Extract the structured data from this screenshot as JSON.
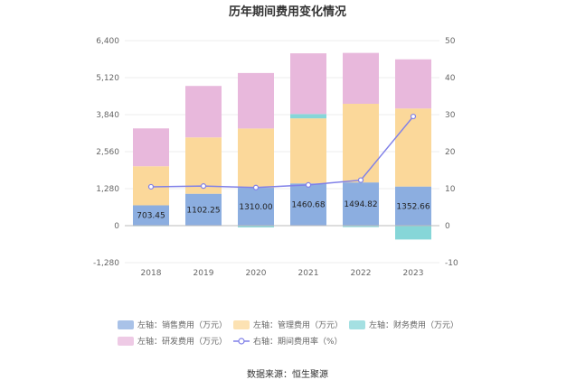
{
  "chart_data": {
    "type": "bar",
    "title": "历年期间费用变化情况",
    "source": "数据来源：恒生聚源",
    "categories": [
      "2018",
      "2019",
      "2020",
      "2021",
      "2022",
      "2023"
    ],
    "left_axis": {
      "ylim": [
        -1280,
        6400
      ],
      "ticks": [
        "6,400",
        "5,120",
        "3,840",
        "2,560",
        "1,280",
        "0",
        "-1,280"
      ],
      "tick_values": [
        6400,
        5120,
        3840,
        2560,
        1280,
        0,
        -1280
      ]
    },
    "right_axis": {
      "ylim": [
        -10,
        50
      ],
      "ticks": [
        "50",
        "40",
        "30",
        "20",
        "10",
        "0",
        "-10"
      ],
      "tick_values": [
        50,
        40,
        30,
        20,
        10,
        0,
        -10
      ]
    },
    "series": [
      {
        "name": "左轴：销售费用（万元）",
        "axis": "left",
        "kind": "bar",
        "color": "#8caee0",
        "values": [
          703.45,
          1102.25,
          1310.0,
          1460.68,
          1494.82,
          1352.66
        ],
        "labels": [
          "703.45",
          "1102.25",
          "1310.00",
          "1460.68",
          "1494.82",
          "1352.66"
        ]
      },
      {
        "name": "左轴：管理费用（万元）",
        "axis": "left",
        "kind": "bar",
        "color": "#fbd89a",
        "values": [
          1350,
          1950,
          2050,
          2250,
          2720,
          2700
        ]
      },
      {
        "name": "左轴：财务费用（万元）",
        "axis": "left",
        "kind": "bar",
        "color": "#86d6d8",
        "values": [
          -20,
          -15,
          -60,
          150,
          -50,
          -480
        ]
      },
      {
        "name": "左轴：研发费用（万元）",
        "axis": "left",
        "kind": "bar",
        "color": "#e8b8dc",
        "values": [
          1310,
          1780,
          1920,
          2100,
          1760,
          1700
        ]
      },
      {
        "name": "右轴：期间费用率（%）",
        "axis": "right",
        "kind": "line",
        "color": "#8080e8",
        "values": [
          10.5,
          10.7,
          10.3,
          11.0,
          12.3,
          29.5
        ]
      }
    ],
    "legend_position": "bottom",
    "grid": true
  }
}
